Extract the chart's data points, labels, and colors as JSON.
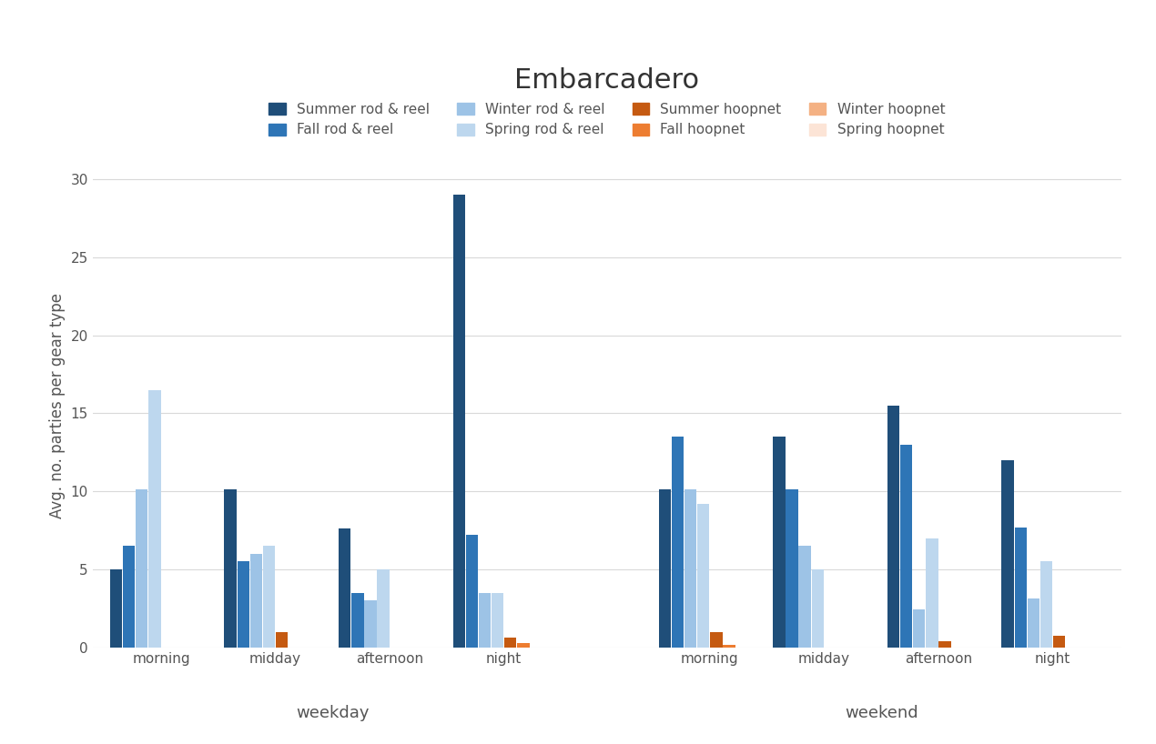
{
  "title": "Embarcadero",
  "ylabel": "Avg. no. parties per gear type",
  "xlabel_weekday": "weekday",
  "xlabel_weekend": "weekend",
  "time_periods": [
    "morning",
    "midday",
    "afternoon",
    "night"
  ],
  "series": [
    {
      "label": "Summer rod & reel",
      "color": "#1F4E79",
      "weekday": [
        5.0,
        10.1,
        7.6,
        29.0
      ],
      "weekend": [
        10.1,
        13.5,
        15.5,
        12.0
      ]
    },
    {
      "label": "Fall rod & reel",
      "color": "#2E75B6",
      "weekday": [
        6.5,
        5.5,
        3.5,
        7.2
      ],
      "weekend": [
        13.5,
        10.1,
        13.0,
        7.7
      ]
    },
    {
      "label": "Winter rod & reel",
      "color": "#9DC3E6",
      "weekday": [
        10.1,
        6.0,
        3.0,
        3.5
      ],
      "weekend": [
        10.1,
        6.5,
        2.4,
        3.1
      ]
    },
    {
      "label": "Spring rod & reel",
      "color": "#BDD7EE",
      "weekday": [
        16.5,
        6.5,
        5.0,
        3.5
      ],
      "weekend": [
        9.2,
        5.0,
        7.0,
        5.5
      ]
    },
    {
      "label": "Summer hoopnet",
      "color": "#C55A11",
      "weekday": [
        0.0,
        1.0,
        0.0,
        0.65
      ],
      "weekend": [
        1.0,
        0.0,
        0.4,
        0.75
      ]
    },
    {
      "label": "Fall hoopnet",
      "color": "#ED7D31",
      "weekday": [
        0.0,
        0.0,
        0.0,
        0.3
      ],
      "weekend": [
        0.15,
        0.0,
        0.0,
        0.0
      ]
    },
    {
      "label": "Winter hoopnet",
      "color": "#F4B183",
      "weekday": [
        0.0,
        0.0,
        0.0,
        0.0
      ],
      "weekend": [
        0.0,
        0.0,
        0.0,
        0.0
      ]
    },
    {
      "label": "Spring hoopnet",
      "color": "#FCE4D6",
      "weekday": [
        0.0,
        0.0,
        0.0,
        0.0
      ],
      "weekend": [
        0.0,
        0.0,
        0.0,
        0.0
      ]
    }
  ],
  "ylim": [
    0,
    31
  ],
  "yticks": [
    0,
    5,
    10,
    15,
    20,
    25,
    30
  ],
  "background_color": "#FFFFFF",
  "grid_color": "#D9D9D9",
  "title_fontsize": 22,
  "label_fontsize": 12,
  "tick_fontsize": 11,
  "legend_fontsize": 11
}
